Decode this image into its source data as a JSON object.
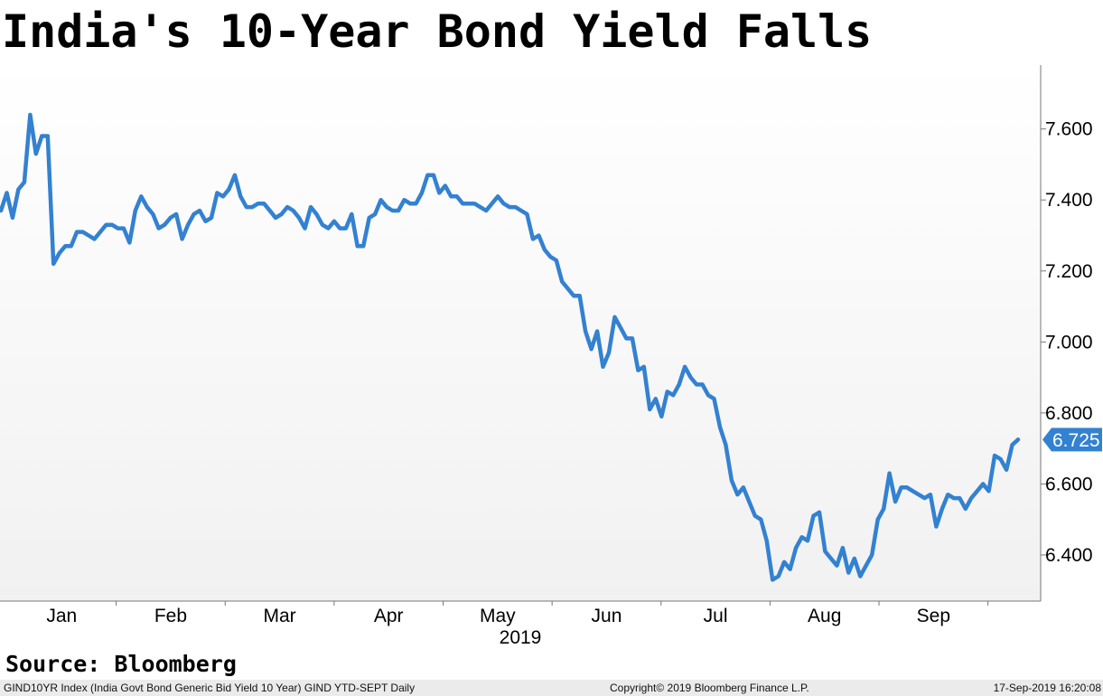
{
  "title": "India's 10-Year Bond Yield Falls",
  "source": "Source: Bloomberg",
  "footer": {
    "left": "GIND10YR Index (India Govt Bond Generic Bid Yield 10 Year) GIND YTD-SEPT  Daily",
    "center": "Copyright© 2019 Bloomberg Finance L.P.",
    "right": "17-Sep-2019 16:20:08"
  },
  "colors": {
    "line": "#3381d1",
    "bg_top": "#ffffff",
    "bg_bottom": "#f1f1f1",
    "axis": "#777777"
  },
  "chart_data": {
    "type": "line",
    "title": "India's 10-Year Bond Yield Falls",
    "xlabel": "",
    "ylabel": "",
    "year_label": "2019",
    "ylim": [
      6.27,
      7.78
    ],
    "yticks": [
      6.4,
      6.6,
      6.8,
      7.0,
      7.2,
      7.4,
      7.6
    ],
    "ytick_labels": [
      "6.400",
      "6.600",
      "6.800",
      "7.000",
      "7.200",
      "7.400",
      "7.600"
    ],
    "months": [
      "Jan",
      "Feb",
      "Mar",
      "Apr",
      "May",
      "Jun",
      "Jul",
      "Aug",
      "Sep"
    ],
    "last_value_label": "6.725",
    "grid": false,
    "series": [
      {
        "values": [
          7.37,
          7.42,
          7.35,
          7.43,
          7.45,
          7.64,
          7.53,
          7.58,
          7.58,
          7.22,
          7.25,
          7.27,
          7.27,
          7.31,
          7.31,
          7.3,
          7.29,
          7.31,
          7.33,
          7.33,
          7.32,
          7.32,
          7.28,
          7.37,
          7.41,
          7.38,
          7.36,
          7.32,
          7.33,
          7.35,
          7.36,
          7.29,
          7.33,
          7.36,
          7.37,
          7.34,
          7.35,
          7.42,
          7.41,
          7.43,
          7.47,
          7.41,
          7.38,
          7.38,
          7.39,
          7.39,
          7.37,
          7.35,
          7.36,
          7.38,
          7.37,
          7.35,
          7.32,
          7.38,
          7.36,
          7.33,
          7.32,
          7.34,
          7.32,
          7.32,
          7.36,
          7.27,
          7.27,
          7.35,
          7.36,
          7.4,
          7.38,
          7.37,
          7.37,
          7.4,
          7.39,
          7.39,
          7.42,
          7.47,
          7.47,
          7.42,
          7.44,
          7.41,
          7.41,
          7.39,
          7.39,
          7.39,
          7.38,
          7.37,
          7.39,
          7.41,
          7.39,
          7.38,
          7.38,
          7.37,
          7.36,
          7.29,
          7.3,
          7.26,
          7.24,
          7.23,
          7.17,
          7.15,
          7.13,
          7.13,
          7.03,
          6.98,
          7.03,
          6.93,
          6.97,
          7.07,
          7.04,
          7.01,
          7.01,
          6.92,
          6.93,
          6.81,
          6.84,
          6.79,
          6.86,
          6.85,
          6.88,
          6.93,
          6.9,
          6.88,
          6.88,
          6.85,
          6.84,
          6.76,
          6.71,
          6.61,
          6.57,
          6.59,
          6.55,
          6.51,
          6.5,
          6.44,
          6.33,
          6.34,
          6.38,
          6.36,
          6.42,
          6.45,
          6.44,
          6.51,
          6.52,
          6.41,
          6.39,
          6.37,
          6.42,
          6.35,
          6.39,
          6.34,
          6.37,
          6.4,
          6.5,
          6.53,
          6.63,
          6.55,
          6.59,
          6.59,
          6.58,
          6.57,
          6.56,
          6.57,
          6.48,
          6.53,
          6.57,
          6.56,
          6.56,
          6.53,
          6.56,
          6.58,
          6.6,
          6.58,
          6.68,
          6.67,
          6.64,
          6.71,
          6.725
        ]
      }
    ]
  }
}
